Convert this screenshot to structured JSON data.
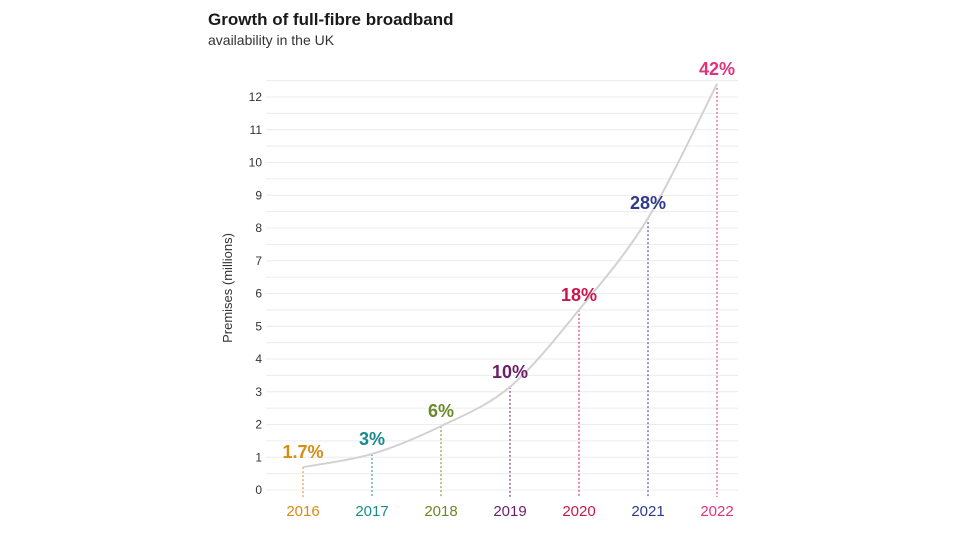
{
  "chart_data": {
    "type": "line",
    "title": "Growth of full-fibre broadband",
    "subtitle": "availability in the UK",
    "xlabel": "",
    "ylabel": "Premises (millions)",
    "ylim": [
      0,
      12
    ],
    "yticks": [
      0,
      1,
      2,
      3,
      4,
      5,
      6,
      7,
      8,
      9,
      10,
      11,
      12
    ],
    "grid": true,
    "categories": [
      "2016",
      "2017",
      "2018",
      "2019",
      "2020",
      "2021",
      "2022"
    ],
    "values": [
      0.7,
      1.1,
      1.95,
      3.15,
      5.5,
      8.3,
      12.4
    ],
    "data_labels": [
      "1.7%",
      "3%",
      "6%",
      "10%",
      "18%",
      "28%",
      "42%"
    ],
    "colors": [
      "#d98b12",
      "#1a8a8c",
      "#6b8a2a",
      "#6a1f6a",
      "#c8184e",
      "#2e3a8c",
      "#e0327e"
    ],
    "line_color": "#d2d2d2"
  }
}
